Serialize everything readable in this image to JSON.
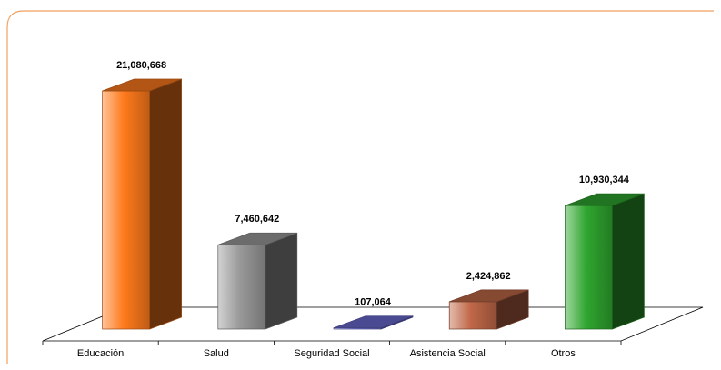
{
  "chart_data": {
    "type": "bar3d",
    "categories": [
      "Educación",
      "Salud",
      "Seguridad Social",
      "Asistencia Social",
      "Otros"
    ],
    "values": [
      21080668,
      7460642,
      107064,
      2424862,
      10930344
    ],
    "value_labels": [
      "21,080,668",
      "7,460,642",
      "107,064",
      "2,424,862",
      "10,930,344"
    ],
    "colors": [
      "#ff7a1c",
      "#9a9a9a",
      "#6a6ad0",
      "#c06848",
      "#2fa52f"
    ]
  }
}
